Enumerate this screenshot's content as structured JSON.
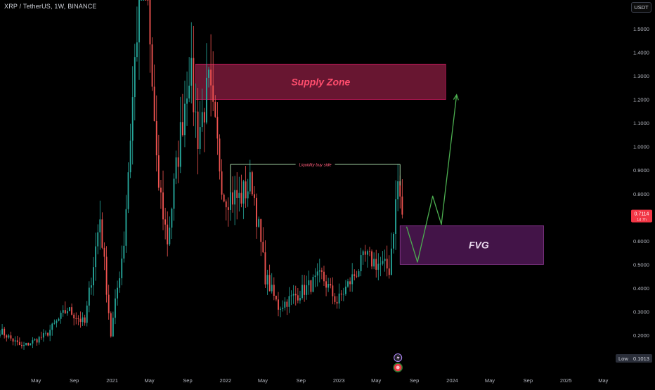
{
  "header": {
    "symbol_title": "XRP / TetherUS, 1W, BINANCE",
    "currency_label": "USDT"
  },
  "colors": {
    "background": "#000000",
    "up_candle": "#26a69a",
    "down_candle": "#ef5350",
    "supply_zone_fill": "#7a1a3a",
    "supply_zone_text": "#ff4d6d",
    "fvg_fill": "#4a1650",
    "fvg_text": "#e8d8ec",
    "projection_line": "#4caf50",
    "liquidity_line": "#a5d6a7",
    "liquidity_text": "#ff5c7a",
    "price_badge": "#f23645",
    "low_badge": "#2a2e39"
  },
  "chart_data": {
    "type": "candlestick",
    "title": "",
    "xlabel": "",
    "ylabel": "",
    "y_axis": {
      "range": [
        0.12,
        1.62
      ],
      "ticks": [
        "1.5000",
        "1.4000",
        "1.3000",
        "1.2000",
        "1.1000",
        "1.0000",
        "0.9000",
        "0.8000",
        "0.7000",
        "0.6000",
        "0.5000",
        "0.4000",
        "0.3000",
        "0.2000"
      ]
    },
    "x_axis": {
      "labels": [
        "May",
        "Sep",
        "2021",
        "May",
        "Sep",
        "2022",
        "May",
        "Sep",
        "2023",
        "May",
        "Sep",
        "2024",
        "May",
        "Sep",
        "2025",
        "May"
      ],
      "label_dates": [
        "2020-05",
        "2020-09",
        "2021-01",
        "2021-05",
        "2021-09",
        "2022-01",
        "2022-05",
        "2022-09",
        "2023-01",
        "2023-05",
        "2023-09",
        "2024-01",
        "2024-05",
        "2024-09",
        "2025-01",
        "2025-05"
      ],
      "range": [
        "2020-01-06",
        "2025-06-01"
      ]
    },
    "candle_interval": "1W",
    "key_points": [
      {
        "date": "2020-01-06",
        "price": 0.22
      },
      {
        "date": "2020-03-16",
        "price": 0.15
      },
      {
        "date": "2020-06-01",
        "price": 0.2
      },
      {
        "date": "2020-08-10",
        "price": 0.31
      },
      {
        "date": "2020-10-05",
        "price": 0.25
      },
      {
        "date": "2020-11-23",
        "price": 0.7
      },
      {
        "date": "2020-12-28",
        "price": 0.2
      },
      {
        "date": "2021-02-08",
        "price": 0.6
      },
      {
        "date": "2021-04-12",
        "price": 1.96
      },
      {
        "date": "2021-05-24",
        "price": 0.9
      },
      {
        "date": "2021-06-28",
        "price": 0.6
      },
      {
        "date": "2021-09-06",
        "price": 1.35
      },
      {
        "date": "2021-10-04",
        "price": 1.05
      },
      {
        "date": "2021-11-08",
        "price": 1.25
      },
      {
        "date": "2021-12-27",
        "price": 0.8
      },
      {
        "date": "2022-02-14",
        "price": 0.78
      },
      {
        "date": "2022-03-28",
        "price": 0.85
      },
      {
        "date": "2022-05-09",
        "price": 0.45
      },
      {
        "date": "2022-06-20",
        "price": 0.32
      },
      {
        "date": "2022-09-19",
        "price": 0.4
      },
      {
        "date": "2022-11-07",
        "price": 0.45
      },
      {
        "date": "2022-12-26",
        "price": 0.34
      },
      {
        "date": "2023-03-27",
        "price": 0.53
      },
      {
        "date": "2023-06-12",
        "price": 0.48
      },
      {
        "date": "2023-07-10",
        "price": 0.85
      },
      {
        "date": "2023-07-24",
        "price": 0.7114
      }
    ],
    "current_price": {
      "value": "0.7114",
      "countdown": "1d 7h"
    },
    "low_marker": {
      "label": "Low",
      "value": "0.1013"
    },
    "annotations": {
      "supply_zone": {
        "label": "Supply Zone",
        "price_top": 1.35,
        "price_bottom": 1.2,
        "date_start": "2021-09-27",
        "date_end": "2023-12-11"
      },
      "fvg": {
        "label": "FVG",
        "price_top": 0.665,
        "price_bottom": 0.5,
        "date_start": "2023-07-17",
        "date_end": "2024-10-21"
      },
      "liquidity_line": {
        "label": "Liquidity buy side",
        "price": 0.925,
        "date_start": "2022-01-17",
        "date_end": "2023-07-17"
      },
      "projection_path": [
        {
          "date": "2023-08-07",
          "price": 0.66
        },
        {
          "date": "2023-09-11",
          "price": 0.51
        },
        {
          "date": "2023-10-30",
          "price": 0.79
        },
        {
          "date": "2023-11-27",
          "price": 0.67
        },
        {
          "date": "2024-01-15",
          "price": 1.22
        }
      ]
    }
  }
}
